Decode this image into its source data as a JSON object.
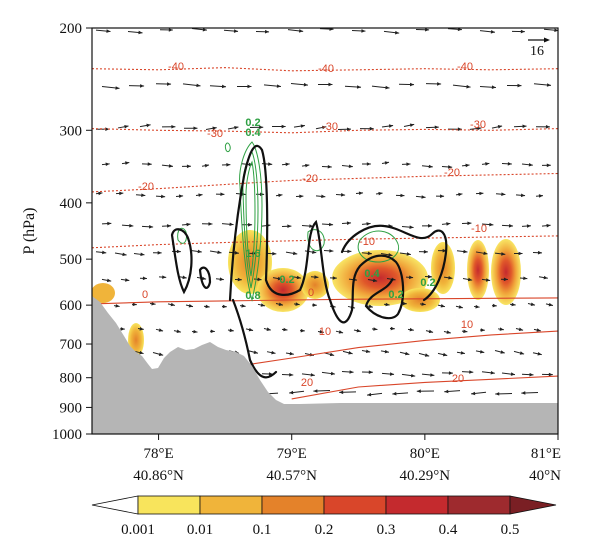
{
  "chart_data": {
    "type": "cross-section",
    "ylabel": "P (hPa)",
    "y_scale": "log",
    "ylim": [
      1000,
      200
    ],
    "y_ticks": [
      "200",
      "300",
      "400",
      "500",
      "600",
      "700",
      "800",
      "900",
      "1000"
    ],
    "x_ticks": [
      {
        "lon": 78,
        "lon_label": "78°E",
        "lat_label": "40.86°N"
      },
      {
        "lon": 79,
        "lon_label": "79°E",
        "lat_label": "40.57°N"
      },
      {
        "lon": 80,
        "lon_label": "80°E",
        "lat_label": "40.29°N"
      },
      {
        "lon": 81,
        "lon_label": "81°E",
        "lat_label": "40°N"
      }
    ],
    "xlim": [
      77.5,
      81
    ],
    "reference_vector": {
      "label": "16"
    },
    "colorbar": {
      "levels": [
        "0.001",
        "0.01",
        "0.1",
        "0.2",
        "0.3",
        "0.4",
        "0.5"
      ],
      "colors": [
        "#ffffff",
        "#f8e45c",
        "#f0b43a",
        "#e4822a",
        "#d9462a",
        "#c42a2e",
        "#9e2a2e",
        "#7a1f24"
      ]
    },
    "temperature_contours": [
      {
        "label": "-40",
        "points": [
          [
            77.5,
            235
          ],
          [
            78,
            236
          ],
          [
            78.5,
            234
          ],
          [
            79,
            237
          ],
          [
            79.5,
            236
          ],
          [
            80,
            235
          ],
          [
            80.5,
            236
          ],
          [
            81,
            235
          ]
        ]
      },
      {
        "label": "-30",
        "points": [
          [
            77.5,
            298
          ],
          [
            78,
            300
          ],
          [
            78.5,
            301
          ],
          [
            79,
            303
          ],
          [
            79.5,
            300
          ],
          [
            80,
            299
          ],
          [
            80.5,
            300
          ],
          [
            81,
            298
          ]
        ]
      },
      {
        "label": "-20",
        "points": [
          [
            77.5,
            383
          ],
          [
            78,
            378
          ],
          [
            78.5,
            372
          ],
          [
            79,
            366
          ],
          [
            79.5,
            363
          ],
          [
            80,
            360
          ],
          [
            80.5,
            358
          ],
          [
            81,
            356
          ]
        ]
      },
      {
        "label": "-10",
        "points": [
          [
            77.5,
            478
          ],
          [
            78,
            472
          ],
          [
            78.5,
            468
          ],
          [
            79,
            465
          ],
          [
            79.5,
            462
          ],
          [
            80,
            460
          ],
          [
            80.5,
            458
          ],
          [
            81,
            456
          ]
        ]
      },
      {
        "label": "0",
        "points": [
          [
            77.5,
            597
          ],
          [
            78,
            592
          ],
          [
            78.5,
            590
          ],
          [
            79,
            588
          ],
          [
            79.5,
            586
          ],
          [
            80,
            585
          ],
          [
            80.5,
            584
          ],
          [
            81,
            583
          ]
        ]
      },
      {
        "label": "10",
        "points": [
          [
            78.5,
            770
          ],
          [
            79,
            740
          ],
          [
            79.5,
            710
          ],
          [
            80,
            690
          ],
          [
            80.5,
            675
          ],
          [
            81,
            665
          ]
        ]
      },
      {
        "label": "20",
        "points": [
          [
            79,
            870
          ],
          [
            79.5,
            830
          ],
          [
            80,
            815
          ],
          [
            80.5,
            805
          ],
          [
            81,
            795
          ]
        ]
      }
    ],
    "contour_labels": [
      "-40",
      "-40",
      "-40",
      "-30",
      "-30",
      "-30",
      "-20",
      "-20",
      "-20",
      "-10",
      "-10",
      "0",
      "0",
      "10",
      "10",
      "20",
      "20",
      "0.2",
      "0.4",
      "1.6",
      "0.2",
      "0.8",
      "0.4",
      "0.2",
      "0.2"
    ]
  }
}
